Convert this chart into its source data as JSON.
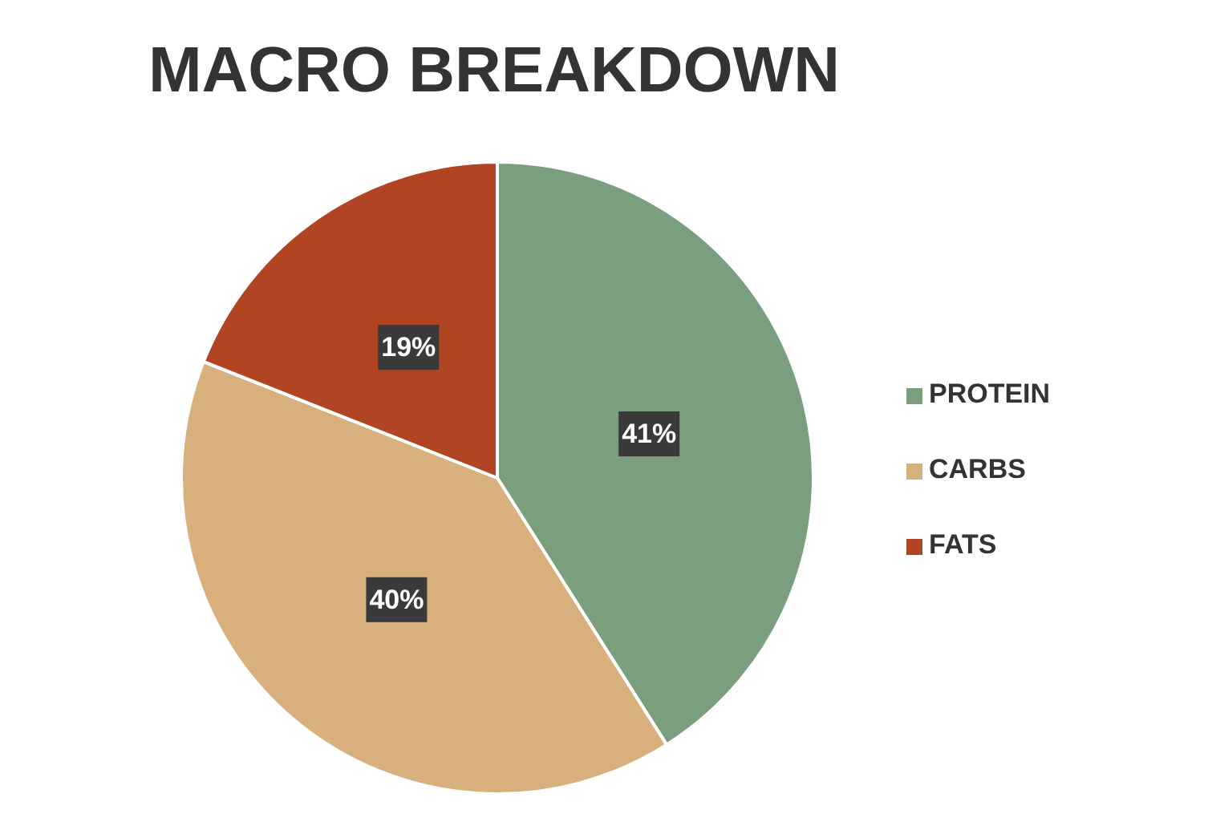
{
  "chart_data": {
    "type": "pie",
    "title": "MACRO BREAKDOWN",
    "categories": [
      "PROTEIN",
      "CARBS",
      "FATS"
    ],
    "values": [
      41,
      40,
      19
    ],
    "colors": [
      "#7a9e7e",
      "#d8b07e",
      "#b04423"
    ],
    "value_labels": [
      "41%",
      "40%",
      "19%"
    ],
    "legend": "right"
  }
}
